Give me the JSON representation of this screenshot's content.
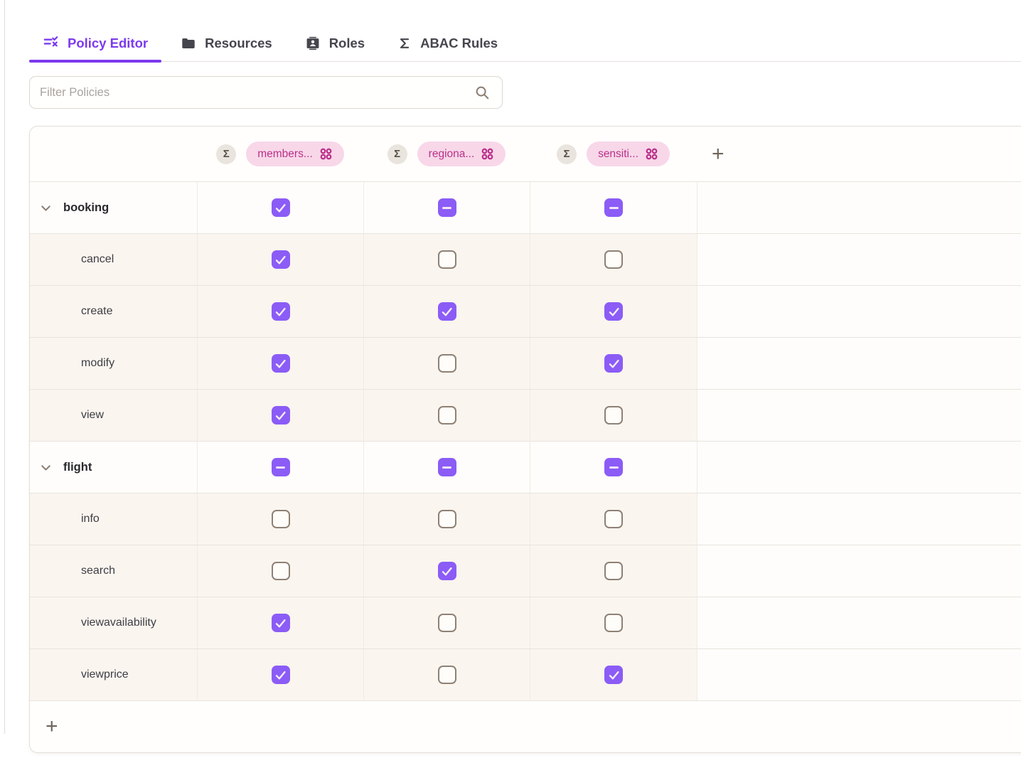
{
  "colors": {
    "accent_purple": "#7c3aed",
    "checkbox_purple": "#8b5cf6",
    "pill_bg_pink": "#f8d7e9",
    "pill_text_pink": "#ba3089"
  },
  "tabs": [
    {
      "label": "Policy Editor",
      "icon": "filter-list-icon",
      "active": true
    },
    {
      "label": "Resources",
      "icon": "folder-icon",
      "active": false
    },
    {
      "label": "Roles",
      "icon": "contact-card-icon",
      "active": false
    },
    {
      "label": "ABAC Rules",
      "icon": "sigma-icon",
      "active": false
    }
  ],
  "filter": {
    "placeholder": "Filter Policies"
  },
  "table": {
    "columns": [
      {
        "sigma": "Σ",
        "label": "members..."
      },
      {
        "sigma": "Σ",
        "label": "regiona..."
      },
      {
        "sigma": "Σ",
        "label": "sensiti..."
      }
    ],
    "add_column_label": "+",
    "add_row_label": "+",
    "rows": [
      {
        "label": "booking",
        "type": "parent",
        "states": [
          "checked",
          "indeterminate",
          "indeterminate"
        ]
      },
      {
        "label": "cancel",
        "type": "child",
        "states": [
          "checked",
          "unchecked",
          "unchecked"
        ]
      },
      {
        "label": "create",
        "type": "child",
        "states": [
          "checked",
          "checked",
          "checked"
        ]
      },
      {
        "label": "modify",
        "type": "child",
        "states": [
          "checked",
          "unchecked",
          "checked"
        ]
      },
      {
        "label": "view",
        "type": "child",
        "states": [
          "checked",
          "unchecked",
          "unchecked"
        ]
      },
      {
        "label": "flight",
        "type": "parent",
        "states": [
          "indeterminate",
          "indeterminate",
          "indeterminate"
        ]
      },
      {
        "label": "info",
        "type": "child",
        "states": [
          "unchecked",
          "unchecked",
          "unchecked"
        ]
      },
      {
        "label": "search",
        "type": "child",
        "states": [
          "unchecked",
          "checked",
          "unchecked"
        ]
      },
      {
        "label": "viewavailability",
        "type": "child",
        "states": [
          "checked",
          "unchecked",
          "unchecked"
        ]
      },
      {
        "label": "viewprice",
        "type": "child",
        "states": [
          "checked",
          "unchecked",
          "checked"
        ]
      }
    ]
  }
}
